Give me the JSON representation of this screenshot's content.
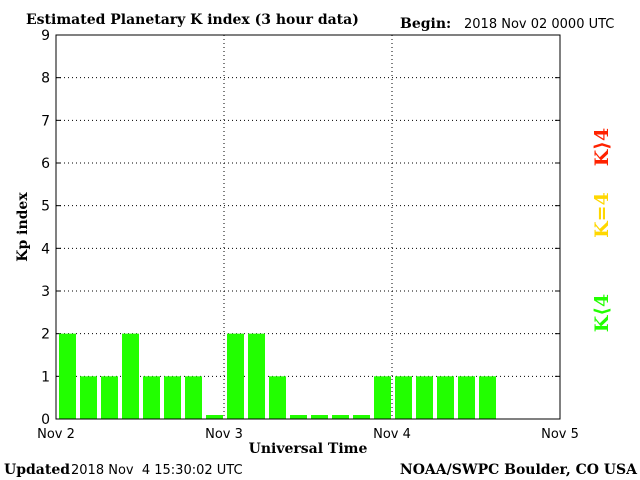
{
  "chart_data": {
    "type": "bar",
    "title": "Estimated Planetary K index (3 hour data)",
    "begin_label": "Begin:",
    "begin_value": "2018 Nov 02 0000 UTC",
    "xlabel": "Universal Time",
    "ylabel": "Kp index",
    "ylim": [
      0,
      9
    ],
    "yticks": [
      "0",
      "1",
      "2",
      "3",
      "4",
      "5",
      "6",
      "7",
      "8",
      "9"
    ],
    "xlim_days": [
      0,
      3
    ],
    "xticks": [
      "Nov 2",
      "Nov 3",
      "Nov 4",
      "Nov 5"
    ],
    "interval_hours": 3,
    "values": [
      2,
      1,
      1,
      2,
      1,
      1,
      1,
      0,
      2,
      2,
      1,
      0,
      0,
      0,
      0,
      1,
      1,
      1,
      1,
      1,
      1
    ],
    "bar_color": "#22ff00",
    "grid": "dotted",
    "legend": {
      "placement": "right",
      "items": [
        {
          "label": "K<4",
          "color": "#22ff00"
        },
        {
          "label": "K=4",
          "color": "#ffd700"
        },
        {
          "label": "K>4",
          "color": "#ff2200"
        }
      ]
    }
  },
  "footer": {
    "updated_label": "Updated",
    "updated_value": "2018 Nov  4 15:30:02 UTC",
    "credit": "NOAA/SWPC Boulder, CO USA"
  }
}
